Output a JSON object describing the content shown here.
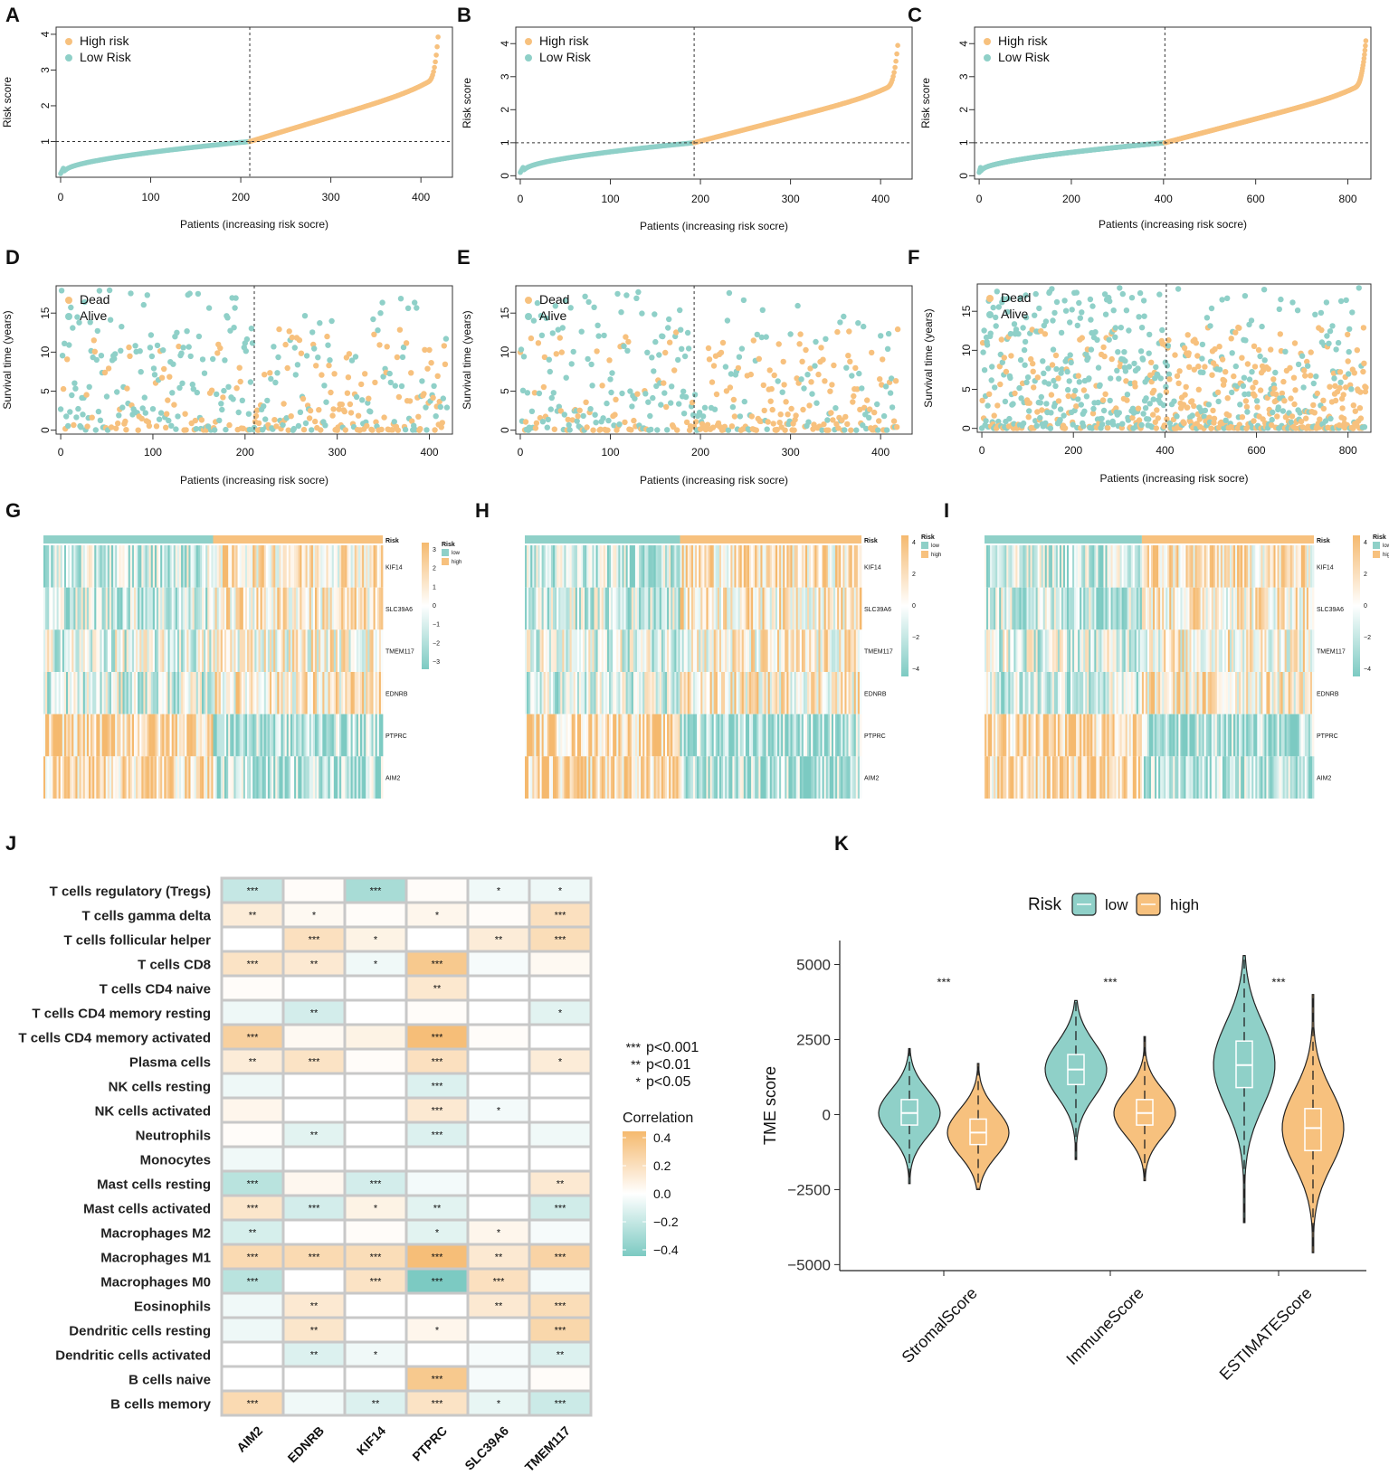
{
  "colors": {
    "high": "#f7c17e",
    "low": "#8fd0c8",
    "high_dark": "#f5b36a",
    "low_dark": "#7cc8c0"
  },
  "panel_labels": [
    "A",
    "B",
    "C",
    "D",
    "E",
    "F",
    "G",
    "H",
    "I",
    "J",
    "K"
  ],
  "chart_data": [
    {
      "panel": "A",
      "type": "scatter",
      "xlabel": "Patients (increasing risk socre)",
      "ylabel": "Risk score",
      "x_ticks": [
        0,
        100,
        200,
        300,
        400
      ],
      "y_ticks": [
        1,
        2,
        3,
        4
      ],
      "xlim": [
        -5,
        435
      ],
      "ylim": [
        0,
        4.2
      ],
      "n": 420,
      "cutoff": 210,
      "threshold": 1,
      "legend": [
        "High risk",
        "Low Risk"
      ]
    },
    {
      "panel": "B",
      "type": "scatter",
      "xlabel": "Patients (increasing risk socre)",
      "ylabel": "Risk score",
      "x_ticks": [
        0,
        100,
        200,
        300,
        400
      ],
      "y_ticks": [
        0,
        1,
        2,
        3,
        4
      ],
      "xlim": [
        -5,
        435
      ],
      "ylim": [
        -0.1,
        4.5
      ],
      "n": 420,
      "cutoff": 193,
      "threshold": 1,
      "legend": [
        "High risk",
        "Low Risk"
      ]
    },
    {
      "panel": "C",
      "type": "scatter",
      "xlabel": "Patients (increasing risk socre)",
      "ylabel": "Risk score",
      "x_ticks": [
        0,
        200,
        400,
        600,
        800
      ],
      "y_ticks": [
        0,
        1,
        2,
        3,
        4
      ],
      "xlim": [
        -10,
        850
      ],
      "ylim": [
        -0.1,
        4.5
      ],
      "n": 840,
      "cutoff": 403,
      "threshold": 1,
      "legend": [
        "High risk",
        "Low Risk"
      ]
    },
    {
      "panel": "D",
      "type": "scatter",
      "xlabel": "Patients (increasing risk socre)",
      "ylabel": "Survival time (years)",
      "x_ticks": [
        0,
        100,
        200,
        300,
        400
      ],
      "y_ticks": [
        0,
        5,
        10,
        15
      ],
      "xlim": [
        -5,
        425
      ],
      "ylim": [
        -0.5,
        18.5
      ],
      "n": 420,
      "cutoff": 210,
      "legend": [
        "Dead",
        "Alive"
      ]
    },
    {
      "panel": "E",
      "type": "scatter",
      "xlabel": "Patients (increasing risk socre)",
      "ylabel": "Survival time (years)",
      "x_ticks": [
        0,
        100,
        200,
        300,
        400
      ],
      "y_ticks": [
        0,
        5,
        10,
        15
      ],
      "xlim": [
        -5,
        435
      ],
      "ylim": [
        -0.5,
        18.5
      ],
      "n": 420,
      "cutoff": 193,
      "legend": [
        "Dead",
        "Alive"
      ]
    },
    {
      "panel": "F",
      "type": "scatter",
      "xlabel": "Patients (increasing risk socre)",
      "ylabel": "Survival time (years)",
      "x_ticks": [
        0,
        200,
        400,
        600,
        800
      ],
      "y_ticks": [
        0,
        5,
        10,
        15
      ],
      "xlim": [
        -10,
        850
      ],
      "ylim": [
        -0.5,
        18.5
      ],
      "n": 840,
      "cutoff": 403,
      "legend": [
        "Dead",
        "Alive"
      ]
    },
    {
      "panel": "G",
      "type": "heatmap",
      "rows": [
        "KIF14",
        "SLC39A6",
        "TMEM117",
        "EDNRB",
        "PTPRC",
        "AIM2"
      ],
      "annotation": "Risk",
      "annotation_levels": [
        "low",
        "high"
      ],
      "scale_ticks": [
        3,
        2,
        1,
        0,
        -1,
        -2,
        -3
      ],
      "low_fraction": 0.5
    },
    {
      "panel": "H",
      "type": "heatmap",
      "rows": [
        "KIF14",
        "SLC39A6",
        "TMEM117",
        "EDNRB",
        "PTPRC",
        "AIM2"
      ],
      "annotation": "Risk",
      "annotation_levels": [
        "low",
        "high"
      ],
      "scale_ticks": [
        4,
        2,
        0,
        -2,
        -4
      ],
      "low_fraction": 0.46
    },
    {
      "panel": "I",
      "type": "heatmap",
      "rows": [
        "KIF14",
        "SLC39A6",
        "TMEM117",
        "EDNRB",
        "PTPRC",
        "AIM2"
      ],
      "annotation": "Risk",
      "annotation_levels": [
        "low",
        "high"
      ],
      "scale_ticks": [
        4,
        2,
        0,
        -2,
        -4
      ],
      "low_fraction": 0.48
    },
    {
      "panel": "J",
      "type": "heatmap",
      "columns": [
        "AIM2",
        "EDNRB",
        "KIF14",
        "PTPRC",
        "SLC39A6",
        "TMEM117"
      ],
      "rows": [
        "T cells regulatory (Tregs)",
        "T cells gamma delta",
        "T cells follicular helper",
        "T cells CD8",
        "T cells CD4 naive",
        "T cells CD4 memory resting",
        "T cells CD4 memory activated",
        "Plasma cells",
        "NK cells resting",
        "NK cells activated",
        "Neutrophils",
        "Monocytes",
        "Mast cells resting",
        "Mast cells activated",
        "Macrophages M2",
        "Macrophages M1",
        "Macrophages M0",
        "Eosinophils",
        "Dendritic cells resting",
        "Dendritic cells activated",
        "B cells naive",
        "B cells memory"
      ],
      "values": [
        [
          -0.2,
          0.02,
          -0.3,
          0.02,
          -0.05,
          -0.06
        ],
        [
          0.12,
          0.04,
          0.02,
          0.06,
          0.02,
          0.2
        ],
        [
          0.0,
          0.2,
          0.08,
          0.0,
          0.12,
          0.22
        ],
        [
          0.18,
          0.14,
          -0.05,
          0.35,
          -0.03,
          0.04
        ],
        [
          0.02,
          0.0,
          0.0,
          0.15,
          0.0,
          0.0
        ],
        [
          -0.06,
          -0.15,
          0.0,
          0.02,
          0.0,
          -0.1
        ],
        [
          0.3,
          0.04,
          0.08,
          0.42,
          0.02,
          0.0
        ],
        [
          0.12,
          0.18,
          0.02,
          0.2,
          0.0,
          0.12
        ],
        [
          -0.06,
          0.0,
          0.0,
          -0.12,
          0.0,
          0.0
        ],
        [
          0.06,
          0.0,
          0.0,
          0.14,
          -0.04,
          0.0
        ],
        [
          0.02,
          -0.1,
          0.0,
          -0.12,
          0.0,
          -0.05
        ],
        [
          -0.05,
          0.0,
          0.0,
          0.0,
          0.0,
          0.0
        ],
        [
          -0.24,
          0.05,
          -0.15,
          -0.04,
          0.0,
          0.14
        ],
        [
          0.16,
          -0.15,
          0.08,
          -0.1,
          0.0,
          -0.16
        ],
        [
          -0.14,
          0.0,
          0.02,
          -0.1,
          0.06,
          -0.03
        ],
        [
          0.24,
          0.24,
          0.22,
          0.42,
          0.14,
          0.28
        ],
        [
          -0.24,
          0.0,
          0.18,
          -0.48,
          0.2,
          -0.04
        ],
        [
          -0.05,
          0.14,
          0.0,
          0.0,
          0.14,
          0.22
        ],
        [
          -0.06,
          0.16,
          0.0,
          0.06,
          0.0,
          0.26
        ],
        [
          0.0,
          -0.12,
          -0.05,
          0.0,
          -0.03,
          -0.12
        ],
        [
          0.0,
          0.0,
          0.0,
          0.35,
          -0.03,
          0.02
        ],
        [
          0.24,
          -0.05,
          -0.12,
          0.18,
          -0.08,
          -0.18
        ]
      ],
      "stars": [
        [
          "***",
          "",
          "***",
          "",
          "*",
          "*"
        ],
        [
          "**",
          "*",
          "",
          "*",
          "",
          "***"
        ],
        [
          "",
          "***",
          "*",
          "",
          "**",
          "***"
        ],
        [
          "***",
          "**",
          "*",
          "***",
          "",
          ""
        ],
        [
          "",
          "",
          "",
          "**",
          "",
          ""
        ],
        [
          "",
          "**",
          "",
          "",
          "",
          "*"
        ],
        [
          "***",
          "",
          "",
          "***",
          "",
          ""
        ],
        [
          "**",
          "***",
          "",
          "***",
          "",
          "*"
        ],
        [
          "",
          "",
          "",
          "***",
          "",
          ""
        ],
        [
          "",
          "",
          "",
          "***",
          "*",
          ""
        ],
        [
          "",
          "**",
          "",
          "***",
          "",
          ""
        ],
        [
          "",
          "",
          "",
          "",
          "",
          ""
        ],
        [
          "***",
          "",
          "***",
          "",
          "",
          "**"
        ],
        [
          "***",
          "***",
          "*",
          "**",
          "",
          "***"
        ],
        [
          "**",
          "",
          "",
          "*",
          "*",
          ""
        ],
        [
          "***",
          "***",
          "***",
          "***",
          "**",
          "***"
        ],
        [
          "***",
          "",
          "***",
          "***",
          "***",
          ""
        ],
        [
          "",
          "**",
          "",
          "",
          "**",
          "***"
        ],
        [
          "",
          "**",
          "",
          "*",
          "",
          "***"
        ],
        [
          "",
          "**",
          "*",
          "",
          "",
          "**"
        ],
        [
          "",
          "",
          "",
          "***",
          "",
          ""
        ],
        [
          "***",
          "",
          "**",
          "***",
          "*",
          "***"
        ]
      ],
      "significance_legend": [
        {
          "stars": "***",
          "label": "p<0.001"
        },
        {
          "stars": "**",
          "label": "p<0.01"
        },
        {
          "stars": "*",
          "label": "p<0.05"
        }
      ],
      "colorbar_title": "Correlation",
      "colorbar_ticks": [
        0.4,
        0.2,
        0.0,
        -0.2,
        -0.4
      ],
      "colorbar_tick_labels": [
        "0.4",
        "0.2",
        "0.0",
        "−0.2",
        "−0.4"
      ]
    },
    {
      "panel": "K",
      "type": "violin",
      "categories": [
        "StromalScore",
        "ImmuneScore",
        "ESTIMATEScore"
      ],
      "ylabel": "TME score",
      "y_ticks": [
        5000,
        2500,
        0,
        -2500,
        -5000
      ],
      "y_tick_labels": [
        "5000",
        "2500",
        "0",
        "−2500",
        "−5000"
      ],
      "ylim": [
        -5200,
        5800
      ],
      "legend_title": "Risk",
      "legend": [
        "low",
        "high"
      ],
      "significance": [
        "***",
        "***",
        "***"
      ],
      "series": [
        {
          "name": "low",
          "median": [
            50,
            1500,
            1650
          ],
          "q1": [
            -350,
            1000,
            900
          ],
          "q3": [
            500,
            2000,
            2450
          ],
          "min": [
            -2300,
            -1500,
            -3600
          ],
          "max": [
            2200,
            3800,
            5300
          ]
        },
        {
          "name": "high",
          "median": [
            -600,
            50,
            -450
          ],
          "q1": [
            -1000,
            -350,
            -1200
          ],
          "q3": [
            -150,
            500,
            200
          ],
          "min": [
            -2500,
            -2200,
            -4600
          ],
          "max": [
            1700,
            2600,
            4000
          ]
        }
      ]
    }
  ]
}
